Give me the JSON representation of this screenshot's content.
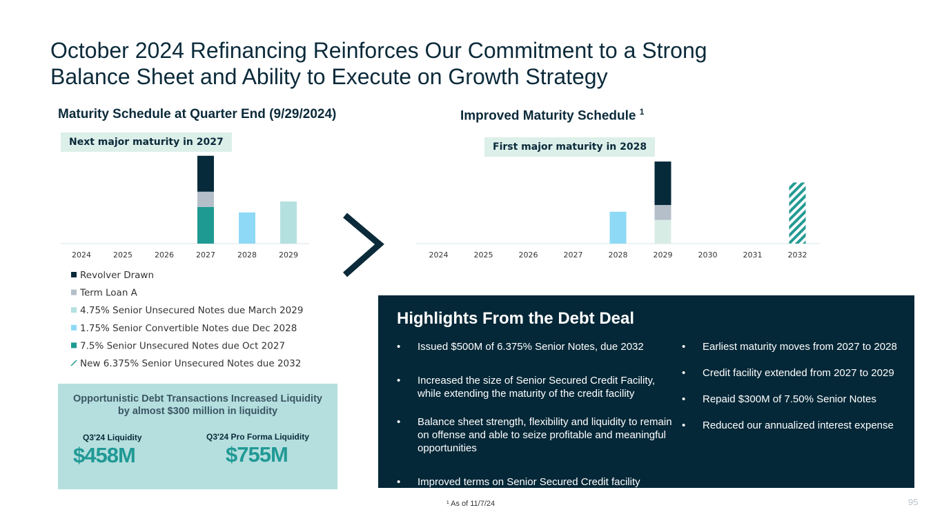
{
  "title_line1": "October 2024 Refinancing Reinforces Our Commitment to a Strong",
  "title_line2": "Balance Sheet and Ability to Execute on Growth Strategy",
  "chart_data": [
    {
      "type": "bar",
      "stacked": true,
      "title": "Maturity Schedule at Quarter End (9/29/2024)",
      "callout": "Next major maturity in 2027",
      "categories": [
        "2024",
        "2025",
        "2026",
        "2027",
        "2028",
        "2029"
      ],
      "series": [
        {
          "name": "Revolver Drawn",
          "color": "#062a3a",
          "values": [
            null,
            null,
            null,
            294,
            null,
            null
          ]
        },
        {
          "name": "Term Loan A",
          "color": "#b4bfca",
          "values": [
            null,
            null,
            null,
            125,
            null,
            null
          ]
        },
        {
          "name": "4.75% Senior Unsecured Notes due March 2029",
          "color": "#b5e0e0",
          "values": [
            null,
            null,
            null,
            null,
            null,
            345
          ]
        },
        {
          "name": "1.75% Senior Convertible Notes due Dec 2028",
          "color": "#8ed9f6",
          "values": [
            null,
            null,
            null,
            null,
            255,
            null
          ]
        },
        {
          "name": "7.5% Senior Unsecured Notes due Oct 2027",
          "color": "#1f9a92",
          "values": [
            null,
            null,
            null,
            300,
            null,
            null
          ]
        },
        {
          "name": "New 6.375% Senior Unsecured Notes due 2032",
          "color": "#239a94",
          "hatched": true,
          "values": [
            null,
            null,
            null,
            null,
            null,
            null
          ]
        }
      ]
    },
    {
      "type": "bar",
      "stacked": true,
      "title": "Improved Maturity Schedule",
      "title_note": "1",
      "callout": "First major maturity in 2028",
      "categories": [
        "2024",
        "2025",
        "2026",
        "2027",
        "2028",
        "2029",
        "2030",
        "2031",
        "2032"
      ],
      "series": [
        {
          "color": "#062a3a",
          "values": [
            null,
            null,
            null,
            null,
            null,
            356,
            null,
            null,
            null
          ]
        },
        {
          "color": "#b4bfca",
          "values": [
            null,
            null,
            null,
            null,
            null,
            122,
            null,
            null,
            null
          ]
        },
        {
          "color": "#d8ece6",
          "values": [
            null,
            null,
            null,
            null,
            null,
            194,
            null,
            null,
            null
          ]
        },
        {
          "color": "#8ed9f6",
          "values": [
            null,
            null,
            null,
            null,
            261,
            null,
            null,
            null,
            null
          ]
        },
        {
          "color": "#1f9a92",
          "values": [
            null,
            null,
            null,
            null,
            null,
            null,
            null,
            null,
            null
          ]
        },
        {
          "color": "#239a94",
          "hatched": true,
          "values": [
            null,
            null,
            null,
            null,
            null,
            null,
            null,
            null,
            500
          ]
        }
      ]
    }
  ],
  "liquidity": {
    "heading": "Opportunistic Debt Transactions Increased Liquidity by almost $300 million in liquidity",
    "before_label": "Q3'24 Liquidity",
    "before_value": "$458M",
    "after_label": "Q3'24 Pro Forma Liquidity",
    "after_value": "$755M"
  },
  "highlights": {
    "title": "Highlights From the Debt Deal",
    "left": [
      "Issued $500M of 6.375% Senior Notes, due 2032",
      "Increased the size of Senior Secured Credit Facility, while extending the maturity of the credit facility",
      "Balance sheet strength, flexibility and liquidity to remain on offense and able to seize profitable and meaningful opportunities",
      "Improved terms on Senior Secured Credit facility"
    ],
    "right": [
      "Earliest maturity moves from 2027 to 2028",
      "Credit facility extended from 2027 to 2029",
      "Repaid $300M of 7.50% Senior Notes",
      "Reduced our annualized interest expense"
    ]
  },
  "footnote": "¹ As of 11/7/24",
  "page_number": "95"
}
